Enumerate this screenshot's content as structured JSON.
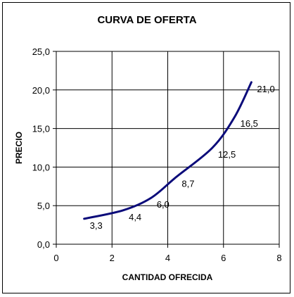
{
  "chart_data": {
    "type": "line",
    "title": "CURVA DE OFERTA",
    "xlabel": "CANTIDAD OFRECIDA",
    "ylabel": "PRECIO",
    "xlim": [
      0,
      8
    ],
    "ylim": [
      0,
      25
    ],
    "xticks": [
      0,
      2,
      4,
      6,
      8
    ],
    "yticks": [
      0,
      5,
      10,
      15,
      20,
      25
    ],
    "xtick_labels": [
      "0",
      "2",
      "4",
      "6",
      "8"
    ],
    "ytick_labels": [
      "0,0",
      "5,0",
      "10,0",
      "15,0",
      "20,0",
      "25,0"
    ],
    "grid": true,
    "legend": "none",
    "series": [
      {
        "x": [
          1,
          2.4,
          3.4,
          4.3,
          5.6,
          6.4,
          7
        ],
        "y": [
          3.3,
          4.4,
          6.0,
          8.7,
          12.5,
          16.5,
          21.0
        ],
        "data_labels": [
          "3,3",
          "4,4",
          "6,0",
          "8,7",
          "12,5",
          "16,5",
          "21,0"
        ],
        "color": "#0b0b7a"
      }
    ]
  }
}
